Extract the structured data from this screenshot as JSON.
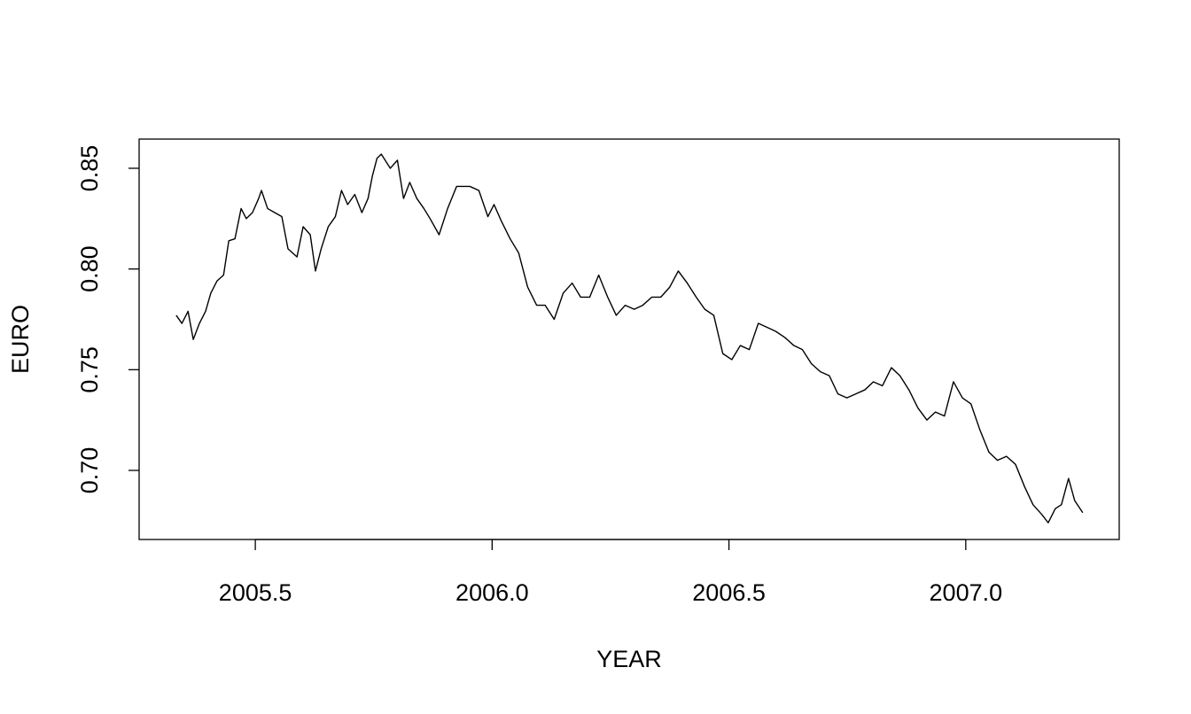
{
  "chart_data": {
    "type": "line",
    "xlabel": "YEAR",
    "ylabel": "EURO",
    "color": "#000000",
    "xlim": [
      2005.2547,
      2007.324
    ],
    "ylim": [
      0.6657,
      0.8645
    ],
    "xticks": [
      2005.5,
      {
        "value": 2006,
        "label": "2006.0"
      },
      2006.5,
      {
        "value": 2007,
        "label": "2007.0"
      }
    ],
    "yticks": [
      {
        "value": 0.7,
        "label": "0.70"
      },
      0.75,
      {
        "value": 0.8,
        "label": "0.80"
      },
      0.85
    ],
    "x": [
      2005.333,
      2005.345,
      2005.358,
      2005.369,
      2005.382,
      2005.395,
      2005.406,
      2005.419,
      2005.433,
      2005.444,
      2005.457,
      2005.47,
      2005.481,
      2005.494,
      2005.507,
      2005.513,
      2005.526,
      2005.541,
      2005.556,
      2005.569,
      2005.588,
      2005.601,
      2005.616,
      2005.627,
      2005.639,
      2005.654,
      2005.669,
      2005.682,
      2005.695,
      2005.71,
      2005.725,
      2005.738,
      2005.747,
      2005.757,
      2005.766,
      2005.785,
      2005.8,
      2005.813,
      2005.826,
      2005.841,
      2005.856,
      2005.869,
      2005.888,
      2005.906,
      2005.925,
      2005.953,
      2005.972,
      2005.991,
      2006.004,
      2006.019,
      2006.038,
      2006.056,
      2006.075,
      2006.094,
      2006.112,
      2006.131,
      2006.15,
      2006.169,
      2006.187,
      2006.206,
      2006.225,
      2006.244,
      2006.262,
      2006.281,
      2006.3,
      2006.318,
      2006.337,
      2006.356,
      2006.375,
      2006.393,
      2006.412,
      2006.431,
      2006.449,
      2006.468,
      2006.487,
      2006.506,
      2006.524,
      2006.543,
      2006.562,
      2006.581,
      2006.599,
      2006.618,
      2006.637,
      2006.655,
      2006.674,
      2006.693,
      2006.712,
      2006.73,
      2006.749,
      2006.768,
      2006.787,
      2006.805,
      2006.824,
      2006.843,
      2006.861,
      2006.88,
      2006.899,
      2006.918,
      2006.936,
      2006.955,
      2006.974,
      2006.993,
      2007.011,
      2007.03,
      2007.049,
      2007.067,
      2007.086,
      2007.105,
      2007.124,
      2007.142,
      2007.161,
      2007.174,
      2007.189,
      2007.202,
      2007.217,
      2007.23,
      2007.247
    ],
    "values": [
      0.777,
      0.773,
      0.779,
      0.765,
      0.773,
      0.779,
      0.788,
      0.794,
      0.797,
      0.814,
      0.815,
      0.83,
      0.825,
      0.828,
      0.835,
      0.839,
      0.83,
      0.828,
      0.826,
      0.81,
      0.806,
      0.821,
      0.817,
      0.799,
      0.81,
      0.821,
      0.826,
      0.839,
      0.832,
      0.837,
      0.828,
      0.835,
      0.846,
      0.855,
      0.857,
      0.85,
      0.854,
      0.835,
      0.843,
      0.835,
      0.83,
      0.825,
      0.817,
      0.83,
      0.841,
      0.841,
      0.839,
      0.826,
      0.832,
      0.824,
      0.815,
      0.808,
      0.791,
      0.782,
      0.782,
      0.775,
      0.788,
      0.793,
      0.786,
      0.786,
      0.797,
      0.786,
      0.777,
      0.782,
      0.78,
      0.782,
      0.786,
      0.786,
      0.791,
      0.799,
      0.793,
      0.786,
      0.78,
      0.777,
      0.758,
      0.755,
      0.762,
      0.76,
      0.773,
      0.771,
      0.769,
      0.766,
      0.762,
      0.76,
      0.753,
      0.749,
      0.747,
      0.738,
      0.736,
      0.738,
      0.74,
      0.744,
      0.742,
      0.751,
      0.747,
      0.74,
      0.731,
      0.725,
      0.729,
      0.727,
      0.744,
      0.736,
      0.733,
      0.72,
      0.709,
      0.705,
      0.707,
      0.703,
      0.692,
      0.683,
      0.678,
      0.674,
      0.681,
      0.683,
      0.696,
      0.685,
      0.679
    ]
  }
}
